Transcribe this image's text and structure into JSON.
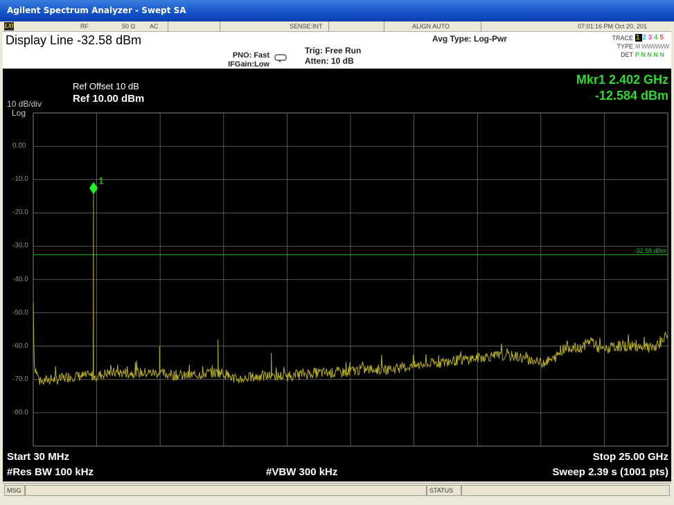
{
  "window": {
    "title": "Agilent Spectrum Analyzer - Swept SA"
  },
  "header": {
    "status_row": {
      "rf": "RF",
      "impedance": "50 Ω",
      "coupling": "AC",
      "sense": "SENSE:INT",
      "align": "ALIGN AUTO",
      "datetime": "07:01:16 PM Oct 20, 201"
    },
    "display_line_text": "Display Line  -32.58 dBm",
    "pno": "PNO: Fast",
    "ifgain": "IFGain:Low",
    "trig": "Trig: Free Run",
    "atten": "Atten: 10 dB",
    "avg_type": "Avg Type: Log-Pwr",
    "trace_panel": {
      "trace_label": "TRACE",
      "trace_values": [
        "1",
        "2",
        "3",
        "4",
        "5"
      ],
      "trace_colors": [
        "#d8c000",
        "#20b0ff",
        "#e040e0",
        "#40c040",
        "#ff4040"
      ],
      "type_label": "TYPE",
      "type_value": "M WWWWW",
      "det_label": "DET",
      "det_value": "P N N N N"
    }
  },
  "screen": {
    "scale": "10 dB/div",
    "scale_type": "Log",
    "ref_offset": "Ref Offset 10 dB",
    "ref_level": "Ref 10.00 dBm",
    "marker_readout_freq": "Mkr1 2.402 GHz",
    "marker_readout_amp": "-12.584 dBm",
    "marker_label": "1",
    "display_line_label": "-32.58 dBm",
    "y_ticks": [
      "0.00",
      "-10.0",
      "-20.0",
      "-30.0",
      "-40.0",
      "-50.0",
      "-60.0",
      "-70.0",
      "-80.0"
    ],
    "start": "Start 30 MHz",
    "stop": "Stop 25.00 GHz",
    "rbw": "#Res BW 100 kHz",
    "vbw": "#VBW 300 kHz",
    "sweep": "Sweep  2.39 s (1001 pts)"
  },
  "statusbar": {
    "msg": "MSG",
    "status": "STATUS"
  },
  "colors": {
    "trace": "#b8b020",
    "marker": "#22ee22",
    "display_line": "#20c020",
    "grid": "#6a6a6a"
  },
  "chart_data": {
    "type": "line",
    "x_unit": "GHz",
    "y_unit": "dBm",
    "xlim": [
      0.03,
      25.0
    ],
    "ylim": [
      -90,
      10
    ],
    "display_line_dbm": -32.58,
    "marker": {
      "x": 2.402,
      "y": -12.584
    },
    "series": [
      {
        "x": [
          0.03,
          0.05,
          0.08,
          0.3,
          0.6,
          1.0,
          1.5,
          2.0,
          2.3,
          2.402,
          2.5,
          3.0,
          4.0,
          4.8,
          5.0,
          6.0,
          7.0,
          7.3,
          7.5,
          8.0,
          9.0,
          9.4,
          10.0,
          11.0,
          12.0,
          13.0,
          14.0,
          15.0,
          16.0,
          17.0,
          18.0,
          19.0,
          20.0,
          20.5,
          21.0,
          21.5,
          22.0,
          22.3,
          22.6,
          23.0,
          23.5,
          24.0,
          24.5,
          25.0
        ],
        "y": [
          -47,
          -58,
          -66,
          -71,
          -70,
          -70,
          -69,
          -69,
          -69,
          -12.584,
          -69,
          -68,
          -68,
          -68,
          -60,
          -69,
          -68,
          -58,
          -68,
          -70,
          -69,
          -62,
          -69,
          -68,
          -68,
          -67,
          -67,
          -66,
          -65,
          -64,
          -63,
          -63,
          -65,
          -64,
          -60,
          -61,
          -58,
          -61,
          -61,
          -60,
          -60,
          -60,
          -61,
          -56
        ]
      }
    ]
  }
}
